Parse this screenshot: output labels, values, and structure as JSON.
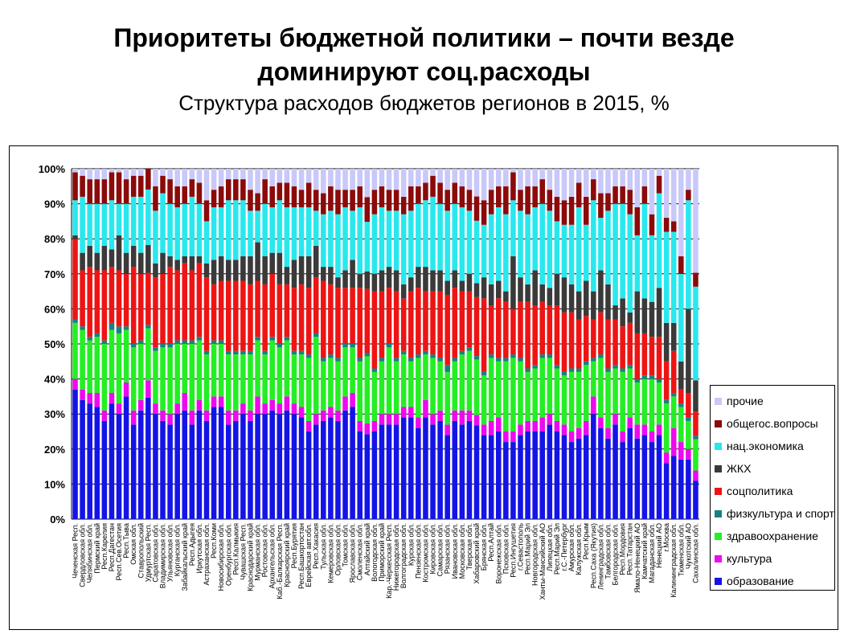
{
  "page": {
    "title": "Приоритеты бюджетной политики – почти везде доминируют соц.расходы",
    "title_line1": "Приоритеты бюджетной политики – почти везде",
    "title_line2": "доминируют соц.расходы",
    "subtitle": "Структура расходов бюджетов регионов в 2015, %"
  },
  "chart_data": {
    "type": "bar",
    "stacked": true,
    "percent": true,
    "title": "Структура расходов бюджетов регионов в 2015, %",
    "ylim": [
      0,
      100
    ],
    "yticks": [
      "0%",
      "10%",
      "20%",
      "30%",
      "40%",
      "50%",
      "60%",
      "70%",
      "80%",
      "90%",
      "100%"
    ],
    "grid": true,
    "legend_position": "right",
    "categories": [
      "Чеченская Респ.",
      "Свердловская обл.",
      "Челябинская обл.",
      "Пермский край",
      "Респ.Карелия",
      "Респ.Дагестан",
      "Респ.Сев.Осетия",
      "Респ.Тыва",
      "Омская обл.",
      "Ставропольский",
      "Удмуртская Респ.",
      "Саратовская обл.",
      "Владимирская обл.",
      "Ульяновская обл.",
      "Курганская обл.",
      "Забайкальский край",
      "Респ.Адыгея",
      "Иркутская обл.",
      "Астраханская обл.",
      "Респ.Коми",
      "Новосибирская обл.",
      "Оренбургская обл.",
      "Респ.Калмыкия",
      "Чувашская Респ.",
      "Краснодарский край",
      "Мурманская обл.",
      "Ростовская обл.",
      "Архангельская обл.",
      "Каб.-Балкарская Респ.",
      "Красноярский край",
      "Респ.Бурятия",
      "Респ.Башкортостан",
      "Еврейская авт.обл.",
      "Респ.Хакасия",
      "Тульская обл.",
      "Кемеровская обл.",
      "Орловская обл.",
      "Томская обл.",
      "Ярославская обл.",
      "Смоленская обл.",
      "Алтайский край",
      "Вологодская обл.",
      "Приморский край",
      "Кар.-Черкесская Респ.",
      "Нижегородская обл.",
      "Волгоградская обл.",
      "Курская обл.",
      "Пензенская обл.",
      "Костромская обл.",
      "Кировская обл.",
      "Самарская обл.",
      "Рязанская обл.",
      "Ивановская обл.",
      "Московская обл.",
      "Тверская обл.",
      "Хабаровский край",
      "Брянская обл.",
      "Респ.Алтай",
      "Воронежская обл.",
      "Псковская обл.",
      "Респ.Ингушетия",
      "г.Севастополь",
      "Респ.Марий Эл",
      "Новгородская обл.",
      "Ханты-Мансийский АО",
      "Липецкая обл.",
      "Респ.Марий Эл",
      "г.С.-Петербург",
      "Амурская обл.",
      "Калужская обл.",
      "Респ.Крым",
      "Респ.Саха (Якутия)",
      "Ленинградская обл.",
      "Тамбовская обл.",
      "Белгородская обл.",
      "Респ.Мордовия",
      "Респ.Татарстан",
      "Ямало-Ненецкий АО",
      "Камчатский край",
      "Магаданская обл.",
      "Ненецкий АО",
      "г.Москва",
      "Калининградская обл.",
      "Тюменская обл.",
      "Чукотский АО",
      "Сахалинская обл."
    ],
    "series": [
      {
        "name": "образование",
        "color": "#1414E6",
        "values": [
          37,
          34,
          33,
          32,
          28,
          33,
          30,
          35,
          27,
          31,
          35,
          30,
          28,
          27,
          30,
          31,
          27,
          31,
          28,
          32,
          32,
          27,
          28,
          30,
          28,
          30,
          30,
          31,
          30,
          31,
          30,
          29,
          25,
          27,
          28,
          29,
          28,
          31,
          32,
          25,
          24,
          25,
          27,
          27,
          27,
          29,
          29,
          26,
          29,
          27,
          28,
          24,
          28,
          27,
          28,
          27,
          24,
          24,
          25,
          22,
          22,
          24,
          25,
          25,
          25,
          27,
          25,
          24,
          22,
          23,
          24,
          30,
          26,
          23,
          27,
          22,
          26,
          23,
          24,
          22,
          24,
          16,
          18,
          17,
          17,
          11
        ]
      },
      {
        "name": "культура",
        "color": "#EE0AEE",
        "values": [
          3,
          3,
          3,
          4,
          3,
          3,
          3,
          4,
          4,
          3,
          5,
          3,
          3,
          3,
          3,
          5,
          4,
          3,
          3,
          3,
          3,
          4,
          3,
          3,
          3,
          5,
          3,
          3,
          3,
          4,
          3,
          3,
          3,
          3,
          3,
          3,
          3,
          4,
          4,
          3,
          3,
          3,
          3,
          3,
          3,
          3,
          3,
          3,
          5,
          3,
          3,
          3,
          3,
          4,
          3,
          3,
          3,
          4,
          4,
          3,
          3,
          3,
          3,
          3,
          4,
          3,
          3,
          3,
          3,
          3,
          4,
          5,
          3,
          3,
          3,
          3,
          3,
          4,
          3,
          3,
          3,
          3,
          8,
          5,
          3,
          3
        ]
      },
      {
        "name": "здравоохранение",
        "color": "#24EE24",
        "values": [
          16,
          17,
          15,
          16,
          19,
          18,
          20,
          15,
          18,
          16,
          15,
          15,
          18,
          19,
          17,
          14,
          19,
          17,
          16,
          15,
          15,
          16,
          16,
          14,
          16,
          16,
          14,
          17,
          16,
          16,
          14,
          15,
          18,
          22,
          14,
          14,
          14,
          14,
          13,
          17,
          19,
          14,
          15,
          19,
          15,
          15,
          13,
          17,
          13,
          16,
          14,
          15,
          14,
          16,
          17,
          16,
          14,
          18,
          16,
          20,
          21,
          18,
          14,
          15,
          17,
          16,
          15,
          14,
          17,
          16,
          16,
          10,
          17,
          16,
          13,
          17,
          14,
          12,
          13,
          15,
          12,
          14,
          9,
          10,
          8,
          9
        ]
      },
      {
        "name": "физкультура и спорт",
        "color": "#188080",
        "values": [
          1,
          1,
          1,
          1,
          1,
          2,
          2,
          1,
          1,
          1,
          1,
          1,
          1,
          1,
          1,
          1,
          1,
          1,
          1,
          1,
          1,
          1,
          1,
          1,
          1,
          1,
          1,
          1,
          1,
          1,
          1,
          1,
          1,
          1,
          1,
          1,
          1,
          1,
          1,
          1,
          1,
          1,
          1,
          1,
          1,
          1,
          1,
          1,
          1,
          1,
          1,
          2,
          1,
          1,
          1,
          1,
          1,
          1,
          1,
          1,
          1,
          1,
          1,
          1,
          1,
          1,
          1,
          1,
          1,
          1,
          1,
          1,
          1,
          1,
          1,
          1,
          1,
          1,
          1,
          1,
          1,
          1,
          1,
          1,
          1,
          1
        ]
      },
      {
        "name": "соцполитика",
        "color": "#EE1414",
        "values": [
          23,
          16,
          20,
          18,
          20,
          16,
          16,
          15,
          22,
          19,
          15,
          20,
          20,
          22,
          20,
          22,
          20,
          21,
          21,
          16,
          17,
          20,
          20,
          20,
          19,
          16,
          19,
          18,
          17,
          15,
          18,
          19,
          19,
          16,
          22,
          20,
          20,
          16,
          16,
          20,
          18,
          22,
          19,
          16,
          19,
          15,
          19,
          19,
          17,
          18,
          19,
          20,
          20,
          17,
          16,
          17,
          21,
          14,
          17,
          16,
          13,
          16,
          19,
          17,
          15,
          14,
          17,
          17,
          16,
          14,
          13,
          11,
          12,
          14,
          13,
          12,
          12,
          13,
          12,
          11,
          12,
          11,
          12,
          4,
          7,
          7
        ]
      },
      {
        "name": "ЖКХ",
        "color": "#3A3A3A",
        "values": [
          1,
          5,
          6,
          5,
          7,
          5,
          10,
          6,
          6,
          6,
          8,
          4,
          6,
          3,
          3,
          2,
          4,
          2,
          4,
          7,
          7,
          6,
          6,
          7,
          8,
          11,
          8,
          6,
          9,
          5,
          8,
          8,
          9,
          9,
          4,
          5,
          3,
          5,
          8,
          4,
          5,
          5,
          6,
          6,
          6,
          4,
          4,
          6,
          7,
          6,
          6,
          4,
          5,
          3,
          5,
          4,
          6,
          6,
          5,
          3,
          15,
          7,
          5,
          10,
          5,
          5,
          9,
          10,
          8,
          8,
          10,
          8,
          12,
          10,
          4,
          8,
          3,
          12,
          10,
          10,
          14,
          11,
          8,
          8,
          24,
          9
        ]
      },
      {
        "name": "нац.экономика",
        "color": "#28E8EE",
        "values": [
          10,
          16,
          12,
          14,
          12,
          14,
          9,
          14,
          14,
          16,
          16,
          15,
          17,
          15,
          15,
          15,
          17,
          15,
          12,
          15,
          14,
          17,
          17,
          16,
          13,
          9,
          15,
          13,
          15,
          17,
          15,
          14,
          14,
          10,
          15,
          16,
          18,
          18,
          14,
          19,
          14,
          17,
          18,
          16,
          17,
          20,
          19,
          18,
          19,
          21,
          19,
          20,
          19,
          21,
          18,
          18,
          15,
          20,
          21,
          22,
          16,
          19,
          20,
          18,
          23,
          22,
          15,
          15,
          17,
          24,
          16,
          26,
          15,
          21,
          29,
          27,
          28,
          16,
          27,
          19,
          27,
          26,
          26,
          25,
          31,
          27
        ]
      },
      {
        "name": "общегос.вопросы",
        "color": "#8B0A0A",
        "values": [
          8,
          6,
          7,
          7,
          7,
          8,
          9,
          7,
          6,
          6,
          6,
          7,
          5,
          7,
          6,
          5,
          5,
          6,
          6,
          5,
          6,
          6,
          6,
          6,
          6,
          5,
          7,
          6,
          5,
          7,
          6,
          5,
          7,
          6,
          6,
          7,
          7,
          5,
          6,
          6,
          7,
          7,
          6,
          6,
          6,
          5,
          7,
          5,
          5,
          6,
          6,
          6,
          6,
          6,
          6,
          7,
          7,
          7,
          6,
          8,
          8,
          6,
          8,
          6,
          7,
          6,
          7,
          7,
          8,
          7,
          8,
          6,
          7,
          5,
          5,
          5,
          7,
          8,
          5,
          6,
          5,
          4,
          3,
          5,
          3,
          4
        ]
      },
      {
        "name": "прочие",
        "color": "#C8C8FA",
        "values": [
          1,
          2,
          3,
          3,
          3,
          1,
          1,
          3,
          2,
          2,
          0,
          5,
          2,
          3,
          5,
          5,
          3,
          4,
          9,
          6,
          5,
          3,
          3,
          3,
          6,
          7,
          3,
          5,
          4,
          4,
          5,
          6,
          4,
          6,
          7,
          5,
          6,
          6,
          6,
          5,
          8,
          6,
          5,
          6,
          6,
          8,
          5,
          5,
          4,
          2,
          4,
          6,
          4,
          5,
          6,
          8,
          9,
          6,
          5,
          5,
          1,
          6,
          5,
          5,
          3,
          6,
          8,
          9,
          8,
          4,
          8,
          3,
          7,
          7,
          5,
          5,
          6,
          11,
          5,
          13,
          2,
          14,
          15,
          25,
          6,
          30
        ]
      }
    ]
  }
}
